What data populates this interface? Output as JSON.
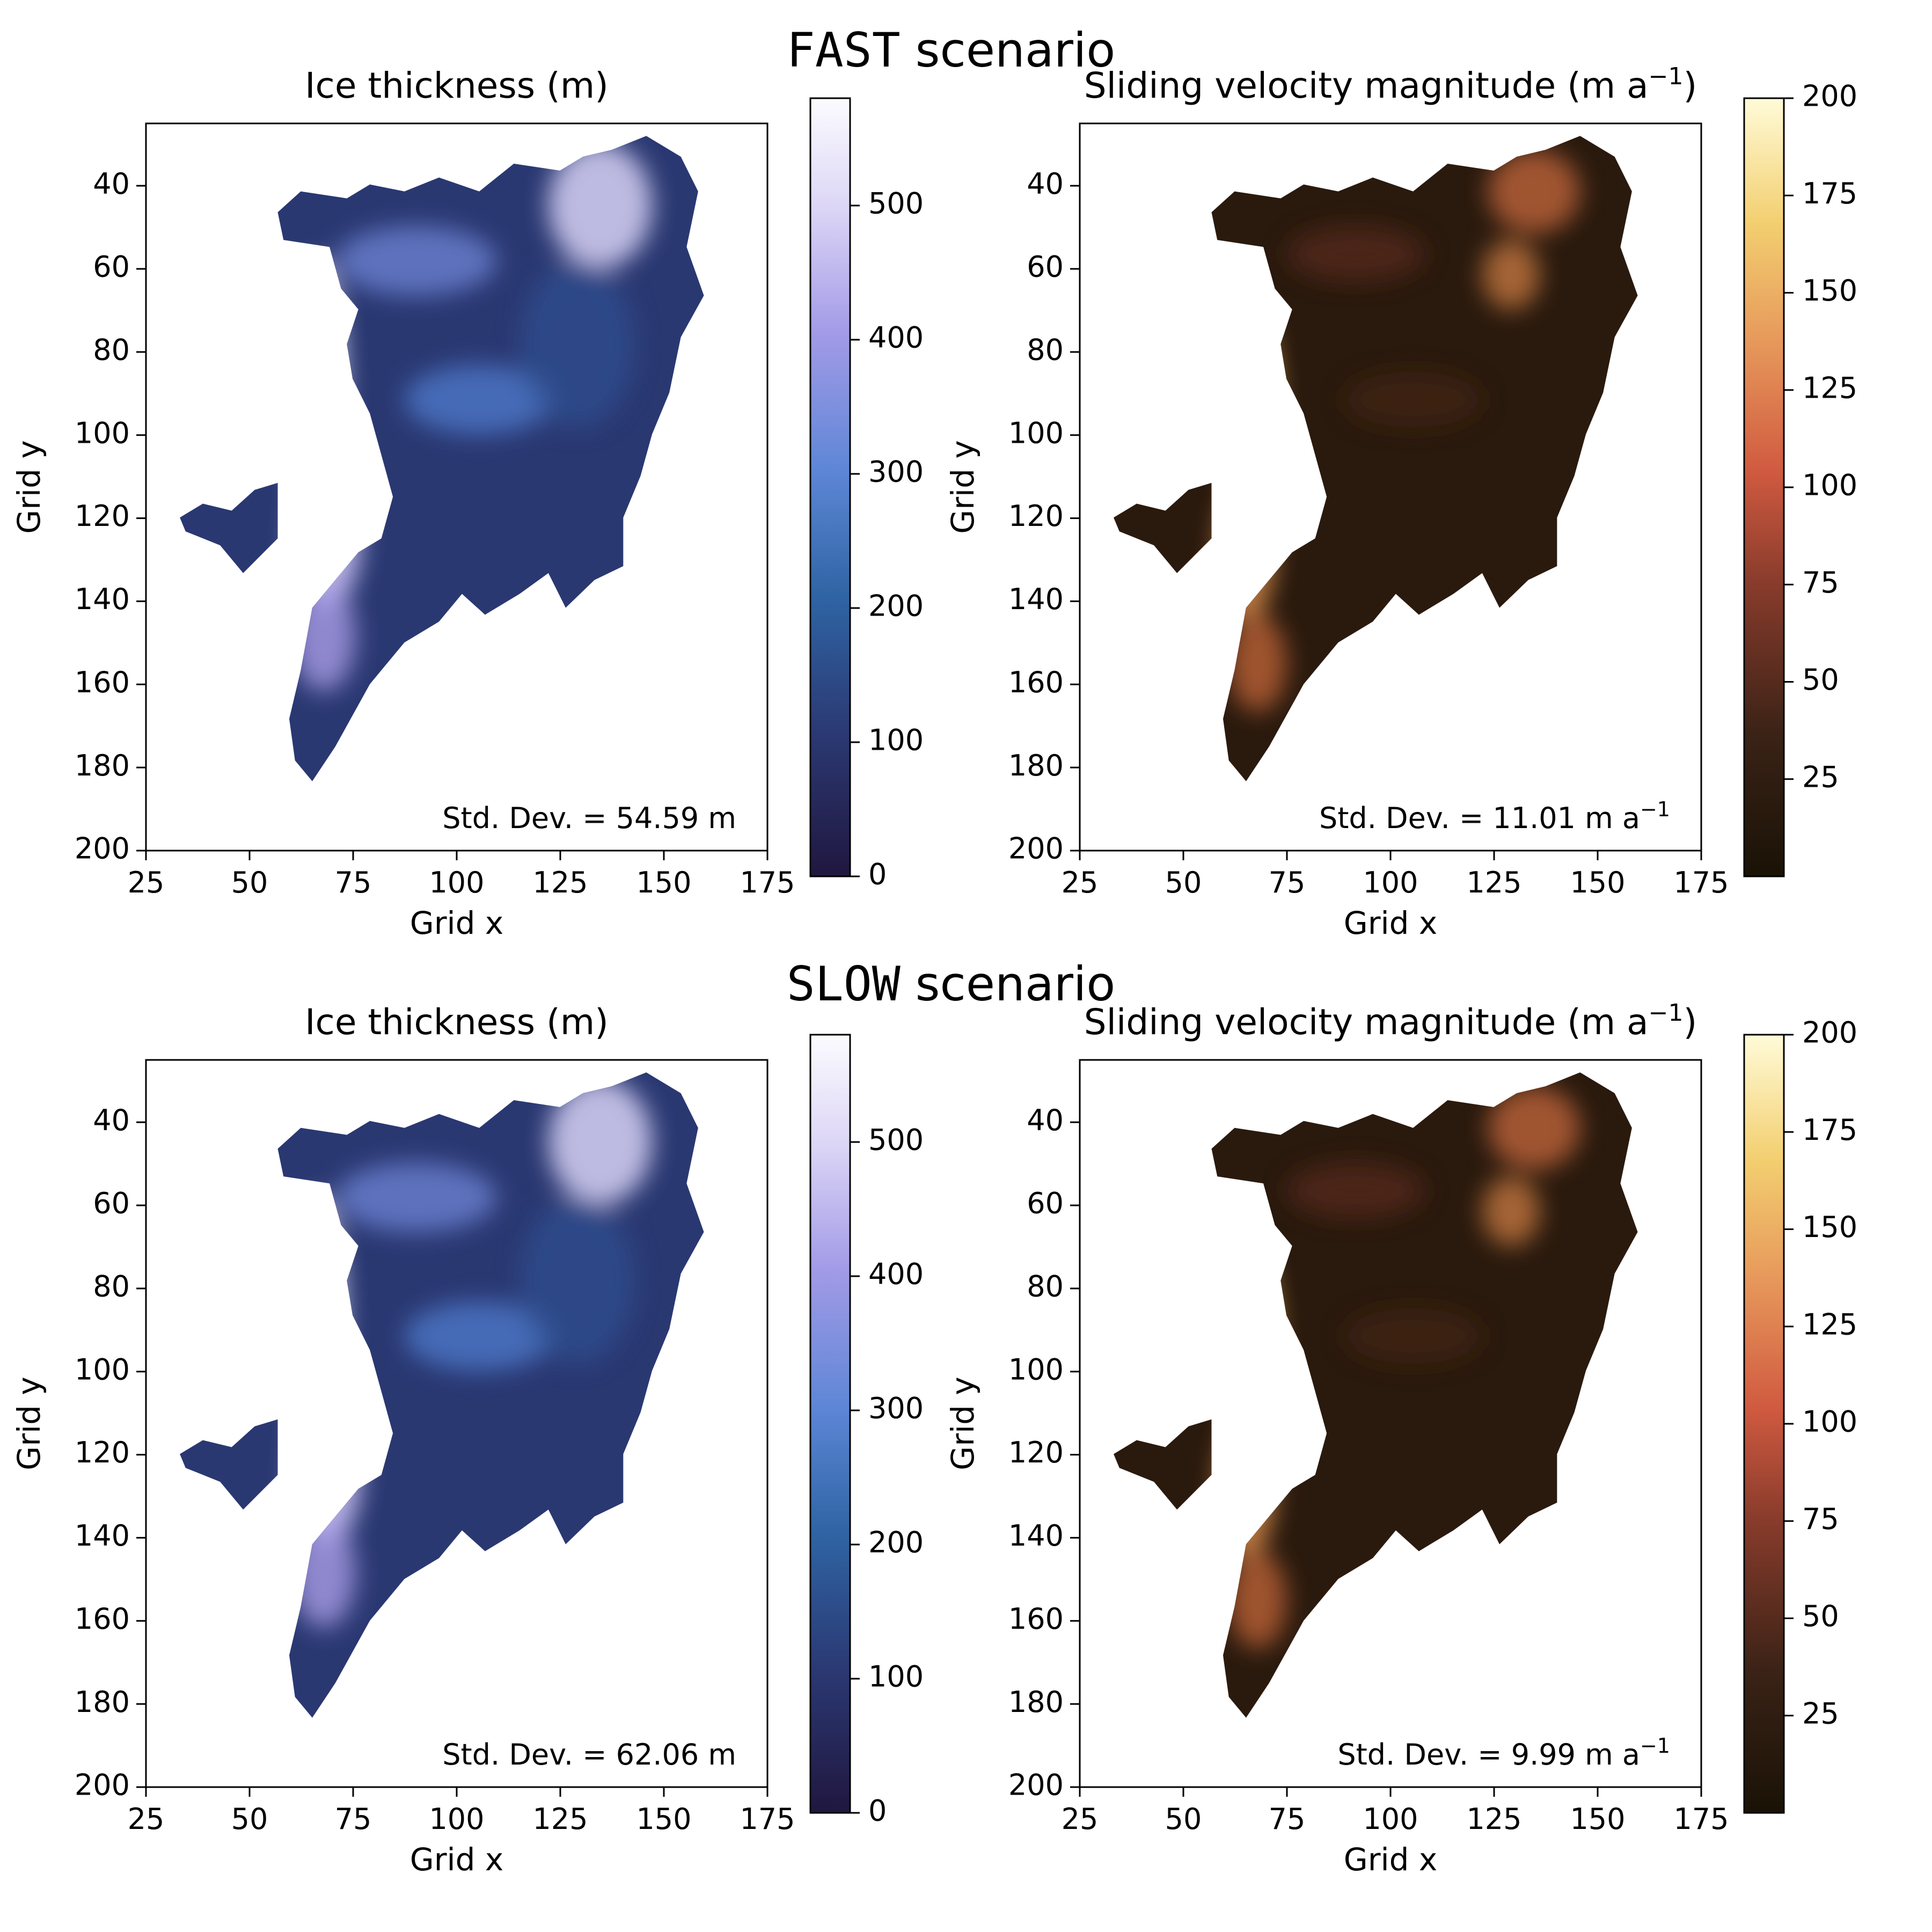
{
  "figure": {
    "background": "#ffffff"
  },
  "sections": [
    {
      "title_mono": "FAST",
      "title_rest": " scenario",
      "panels": [
        {
          "title_main": "Ice thickness (m)",
          "xlabel": "Grid x",
          "ylabel": "Grid y",
          "annotation": "Std. Dev. = 54.59 m",
          "colormap": "lavender",
          "colorbar_ticks": [
            "0",
            "100",
            "200",
            "300",
            "400",
            "500"
          ]
        },
        {
          "title_main": "Sliding velocity magnitude (m a",
          "title_sup": "−1",
          "title_end": ")",
          "xlabel": "Grid x",
          "ylabel": "Grid y",
          "annotation": "Std. Dev. = 11.01 m a",
          "annotation_sup": "−1",
          "colormap": "amber",
          "colorbar_ticks": [
            "25",
            "50",
            "75",
            "100",
            "125",
            "150",
            "175",
            "200"
          ]
        }
      ]
    },
    {
      "title_mono": "SLOW",
      "title_rest": " scenario",
      "panels": [
        {
          "title_main": "Ice thickness (m)",
          "xlabel": "Grid x",
          "ylabel": "Grid y",
          "annotation": "Std. Dev. = 62.06 m",
          "colormap": "lavender",
          "colorbar_ticks": [
            "0",
            "100",
            "200",
            "300",
            "400",
            "500"
          ]
        },
        {
          "title_main": "Sliding velocity magnitude (m a",
          "title_sup": "−1",
          "title_end": ")",
          "xlabel": "Grid x",
          "ylabel": "Grid y",
          "annotation": "Std. Dev. = 9.99 m a",
          "annotation_sup": "−1",
          "colormap": "amber",
          "colorbar_ticks": [
            "25",
            "50",
            "75",
            "100",
            "125",
            "150",
            "175",
            "200"
          ]
        }
      ]
    }
  ],
  "chart_data": [
    {
      "type": "heatmap",
      "title": "Ice thickness (m)",
      "xlabel": "Grid x",
      "ylabel": "Grid y",
      "xlim": [
        25,
        175
      ],
      "ylim": [
        200,
        25
      ],
      "xticks": [
        25,
        50,
        75,
        100,
        125,
        150,
        175
      ],
      "yticks": [
        40,
        60,
        80,
        100,
        120,
        140,
        160,
        180,
        200
      ],
      "colorbar_range": [
        0,
        580
      ],
      "colorbar_ticks": [
        0,
        100,
        200,
        300,
        400,
        500
      ],
      "stddev_text": "Std. Dev. = 54.59 m"
    },
    {
      "type": "heatmap",
      "title": "Sliding velocity magnitude (m a−1)",
      "xlabel": "Grid x",
      "ylabel": "Grid y",
      "xlim": [
        25,
        175
      ],
      "ylim": [
        200,
        25
      ],
      "xticks": [
        25,
        50,
        75,
        100,
        125,
        150,
        175
      ],
      "yticks": [
        40,
        60,
        80,
        100,
        120,
        140,
        160,
        180,
        200
      ],
      "colorbar_range": [
        0,
        200
      ],
      "colorbar_ticks": [
        25,
        50,
        75,
        100,
        125,
        150,
        175,
        200
      ],
      "stddev_text": "Std. Dev. = 11.01 m a−1"
    },
    {
      "type": "heatmap",
      "title": "Ice thickness (m)",
      "xlabel": "Grid x",
      "ylabel": "Grid y",
      "xlim": [
        25,
        175
      ],
      "ylim": [
        200,
        25
      ],
      "xticks": [
        25,
        50,
        75,
        100,
        125,
        150,
        175
      ],
      "yticks": [
        40,
        60,
        80,
        100,
        120,
        140,
        160,
        180,
        200
      ],
      "colorbar_range": [
        0,
        580
      ],
      "colorbar_ticks": [
        0,
        100,
        200,
        300,
        400,
        500
      ],
      "stddev_text": "Std. Dev. = 62.06 m"
    },
    {
      "type": "heatmap",
      "title": "Sliding velocity magnitude (m a−1)",
      "xlabel": "Grid x",
      "ylabel": "Grid y",
      "xlim": [
        25,
        175
      ],
      "ylim": [
        200,
        25
      ],
      "xticks": [
        25,
        50,
        75,
        100,
        125,
        150,
        175
      ],
      "yticks": [
        40,
        60,
        80,
        100,
        120,
        140,
        160,
        180,
        200
      ],
      "colorbar_range": [
        0,
        200
      ],
      "colorbar_ticks": [
        25,
        50,
        75,
        100,
        125,
        150,
        175,
        200
      ],
      "stddev_text": "Std. Dev. = 9.99 m a−1"
    }
  ]
}
